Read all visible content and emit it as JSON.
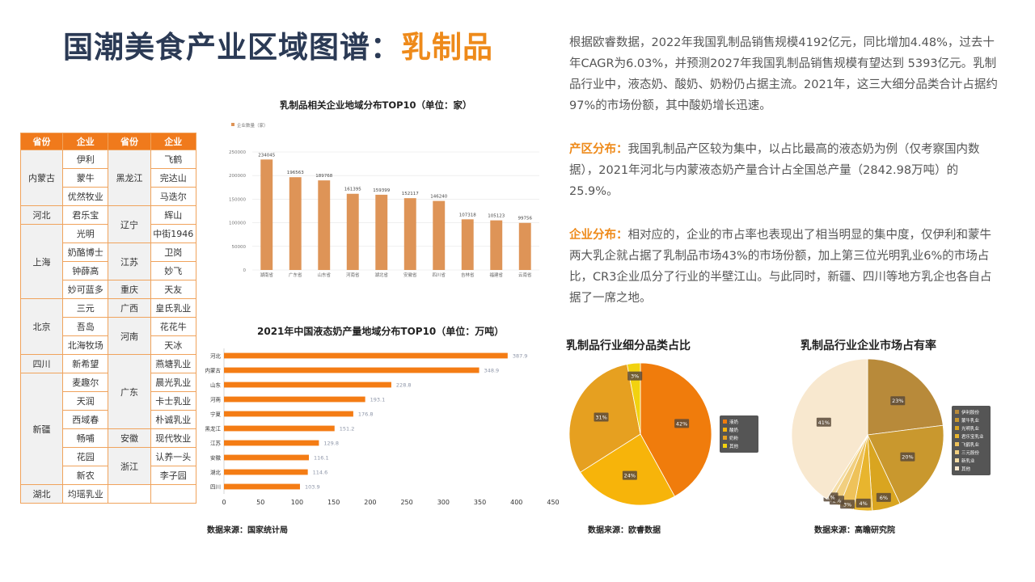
{
  "title": {
    "main": "国潮美食产业区域图谱：",
    "highlight": "乳制品"
  },
  "table": {
    "headers": [
      "省份",
      "企业",
      "省份",
      "企业"
    ],
    "left": [
      {
        "province": "内蒙古",
        "companies": [
          "伊利",
          "蒙牛",
          "优然牧业"
        ]
      },
      {
        "province": "河北",
        "companies": [
          "君乐宝"
        ]
      },
      {
        "province": "上海",
        "companies": [
          "光明",
          "奶酪博士",
          "钟薛高",
          "妙可蓝多"
        ]
      },
      {
        "province": "北京",
        "companies": [
          "三元",
          "吾岛",
          "北海牧场"
        ]
      },
      {
        "province": "四川",
        "companies": [
          "新希望"
        ]
      },
      {
        "province": "新疆",
        "companies": [
          "麦趣尔",
          "天润",
          "西域春",
          "畅哺",
          "花园",
          "新农"
        ]
      },
      {
        "province": "湖北",
        "companies": [
          "均瑶乳业"
        ]
      }
    ],
    "right": [
      {
        "province": "黑龙江",
        "companies": [
          "飞鹤",
          "完达山",
          "马迭尔"
        ]
      },
      {
        "province": "辽宁",
        "companies": [
          "辉山",
          "中街1946"
        ]
      },
      {
        "province": "江苏",
        "companies": [
          "卫岗",
          "妙飞"
        ]
      },
      {
        "province": "重庆",
        "companies": [
          "天友"
        ]
      },
      {
        "province": "广西",
        "companies": [
          "皇氏乳业"
        ]
      },
      {
        "province": "河南",
        "companies": [
          "花花牛",
          "天冰"
        ]
      },
      {
        "province": "广东",
        "companies": [
          "燕塘乳业",
          "晨光乳业",
          "卡士乳业",
          "朴诚乳业"
        ]
      },
      {
        "province": "安徽",
        "companies": [
          "现代牧业"
        ]
      },
      {
        "province": "浙江",
        "companies": [
          "认养一头",
          "李子园"
        ]
      }
    ]
  },
  "chart_data": [
    {
      "type": "bar",
      "title": "乳制品相关企业地域分布TOP10（单位：家）",
      "legend": "企业数量（家）",
      "categories": [
        "湖南省",
        "广东省",
        "山东省",
        "河南省",
        "湖北省",
        "安徽省",
        "四川省",
        "吉林省",
        "福建省",
        "云南省"
      ],
      "values": [
        234045,
        196563,
        189768,
        161395,
        159399,
        152117,
        146240,
        107318,
        105123,
        99756
      ],
      "yticks": [
        0,
        50000,
        100000,
        150000,
        200000,
        250000
      ],
      "ylim": [
        0,
        250000
      ],
      "color": "#de9457"
    },
    {
      "type": "bar",
      "orientation": "horizontal",
      "title": "2021年中国液态奶产量地域分布TOP10（单位：万吨）",
      "categories": [
        "河北",
        "内蒙古",
        "山东",
        "河南",
        "宁夏",
        "黑龙江",
        "江苏",
        "安徽",
        "湖北",
        "四川"
      ],
      "values": [
        387.9,
        348.9,
        228.8,
        193.1,
        176.8,
        151.2,
        129.8,
        116.1,
        114.6,
        103.9
      ],
      "xticks": [
        0,
        50,
        100,
        150,
        200,
        250,
        300,
        350,
        400,
        450
      ],
      "xlim": [
        0,
        450
      ],
      "color": "#f47c14",
      "source": "数据来源：国家统计局"
    },
    {
      "type": "pie",
      "title": "乳制品行业细分品类占比",
      "labels": [
        "液奶",
        "酸奶",
        "奶粉",
        "其他"
      ],
      "values": [
        42,
        24,
        31,
        3
      ],
      "display": [
        "42%",
        "24%",
        "31%",
        "3%"
      ],
      "colors": [
        "#f07c0c",
        "#f7b40a",
        "#e6a020",
        "#f2d20f"
      ],
      "source": "数据来源：欧睿数据"
    },
    {
      "type": "pie",
      "title": "乳制品行业企业市场占有率",
      "labels": [
        "伊利股份",
        "蒙牛乳业",
        "光明乳业",
        "君乐宝乳业",
        "飞鹤乳业",
        "三元股份",
        "新乳业",
        "其他"
      ],
      "values": [
        23,
        20,
        6,
        4,
        3,
        2,
        1,
        41
      ],
      "display": [
        "23%",
        "20%",
        "6%",
        "4%",
        "3%",
        "2%",
        "1%",
        "41%"
      ],
      "colors": [
        "#b88a3a",
        "#c9982e",
        "#d9a520",
        "#e8b52e",
        "#eec25a",
        "#f1cf80",
        "#f4dca4",
        "#f8e8cf"
      ],
      "source": "数据来源：高瞻研究院"
    }
  ],
  "paragraphs": [
    {
      "keyword": "",
      "text": "根据欧睿数据，2022年我国乳制品销售规模4192亿元，同比增加4.48%，过去十年CAGR为6.03%，并预测2027年我国乳制品销售规模有望达到 5393亿元。乳制品行业中，液态奶、酸奶、奶粉仍占据主流。2021年，这三大细分品类合计占据约 97%的市场份额，其中酸奶增长迅速。"
    },
    {
      "keyword": "产区分布：",
      "text": "我国乳制品产区较为集中，以占比最高的液态奶为例（仅考察国内数据），2021年河北与内蒙液态奶产量合计占全国总产量（2842.98万吨）的25.9%。"
    },
    {
      "keyword": "企业分布：",
      "text": "相对应的，企业的市占率也表现出了相当明显的集中度，仅伊利和蒙牛两大乳企就占据了乳制品市场43%的市场份额，加上第三位光明乳业6%的市场占比，CR3企业瓜分了行业的半壁江山。与此同时，新疆、四川等地方乳企也各自占据了一席之地。"
    }
  ]
}
